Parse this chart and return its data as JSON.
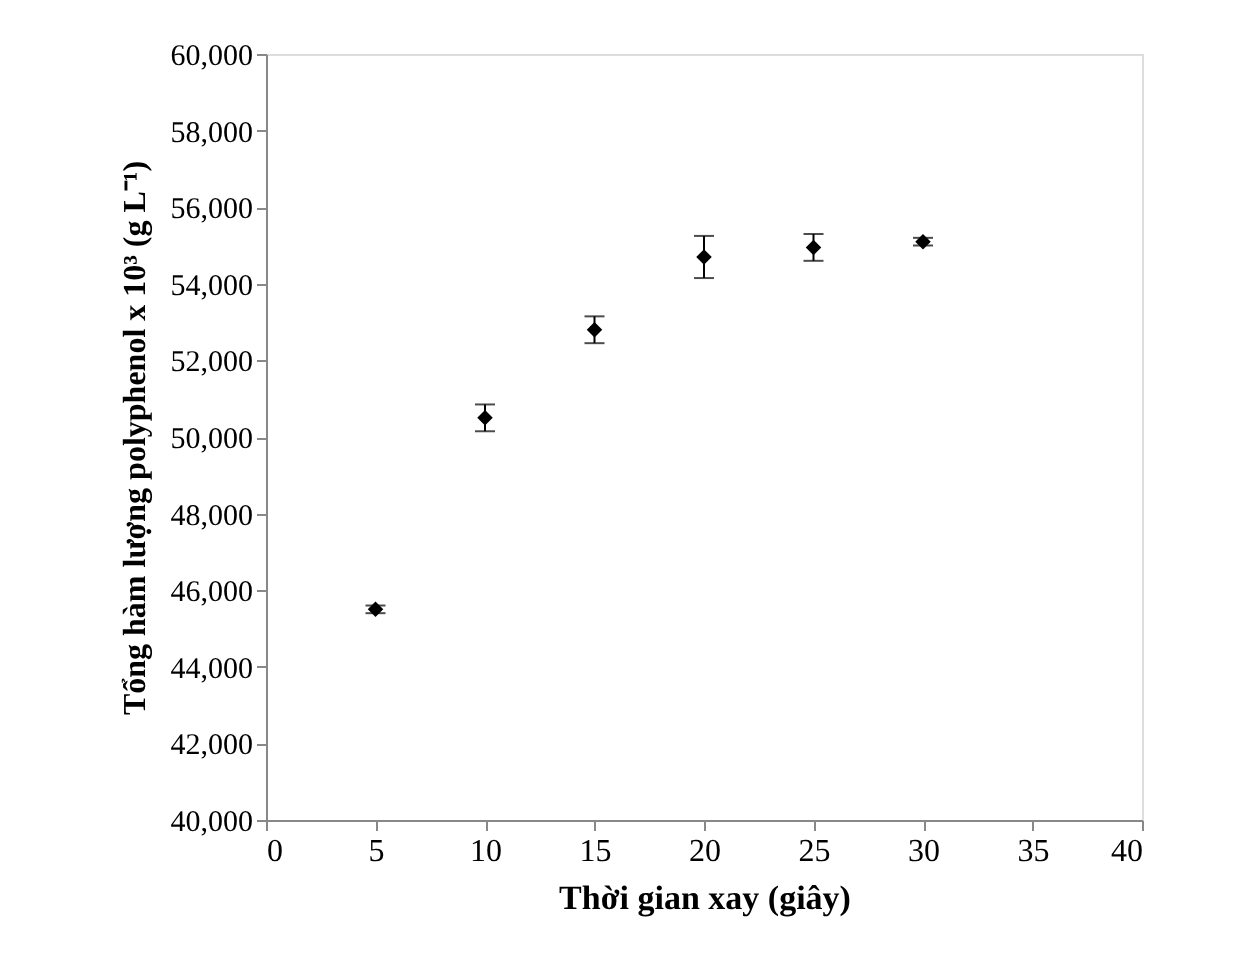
{
  "chart_data": {
    "type": "scatter",
    "xlabel": "Thời gian xay (giây)",
    "ylabel": "Tổng hàm lượng polyphenol x 10³ (g L⁻¹)",
    "x": [
      5,
      10,
      15,
      20,
      25,
      30
    ],
    "series": [
      {
        "color": "#000000",
        "values": [
          45500,
          50500,
          52800,
          54700,
          54950,
          55100
        ],
        "errors": [
          100,
          350,
          350,
          550,
          350,
          100
        ]
      }
    ],
    "xlim": [
      0,
      40
    ],
    "xticks": [
      0,
      5,
      10,
      15,
      20,
      25,
      30,
      35,
      40
    ],
    "ylim": [
      40000,
      60000
    ],
    "yticks": [
      {
        "value": 40000,
        "label": "40,000"
      },
      {
        "value": 42000,
        "label": "42,000"
      },
      {
        "value": 44000,
        "label": "44,000"
      },
      {
        "value": 46000,
        "label": "46,000"
      },
      {
        "value": 48000,
        "label": "48,000"
      },
      {
        "value": 50000,
        "label": "50,000"
      },
      {
        "value": 52000,
        "label": "52,000"
      },
      {
        "value": 54000,
        "label": "54,000"
      },
      {
        "value": 56000,
        "label": "56,000"
      },
      {
        "value": 58000,
        "label": "58,000"
      },
      {
        "value": 60000,
        "label": "60,000"
      }
    ],
    "marker": "diamond",
    "grid": false
  }
}
